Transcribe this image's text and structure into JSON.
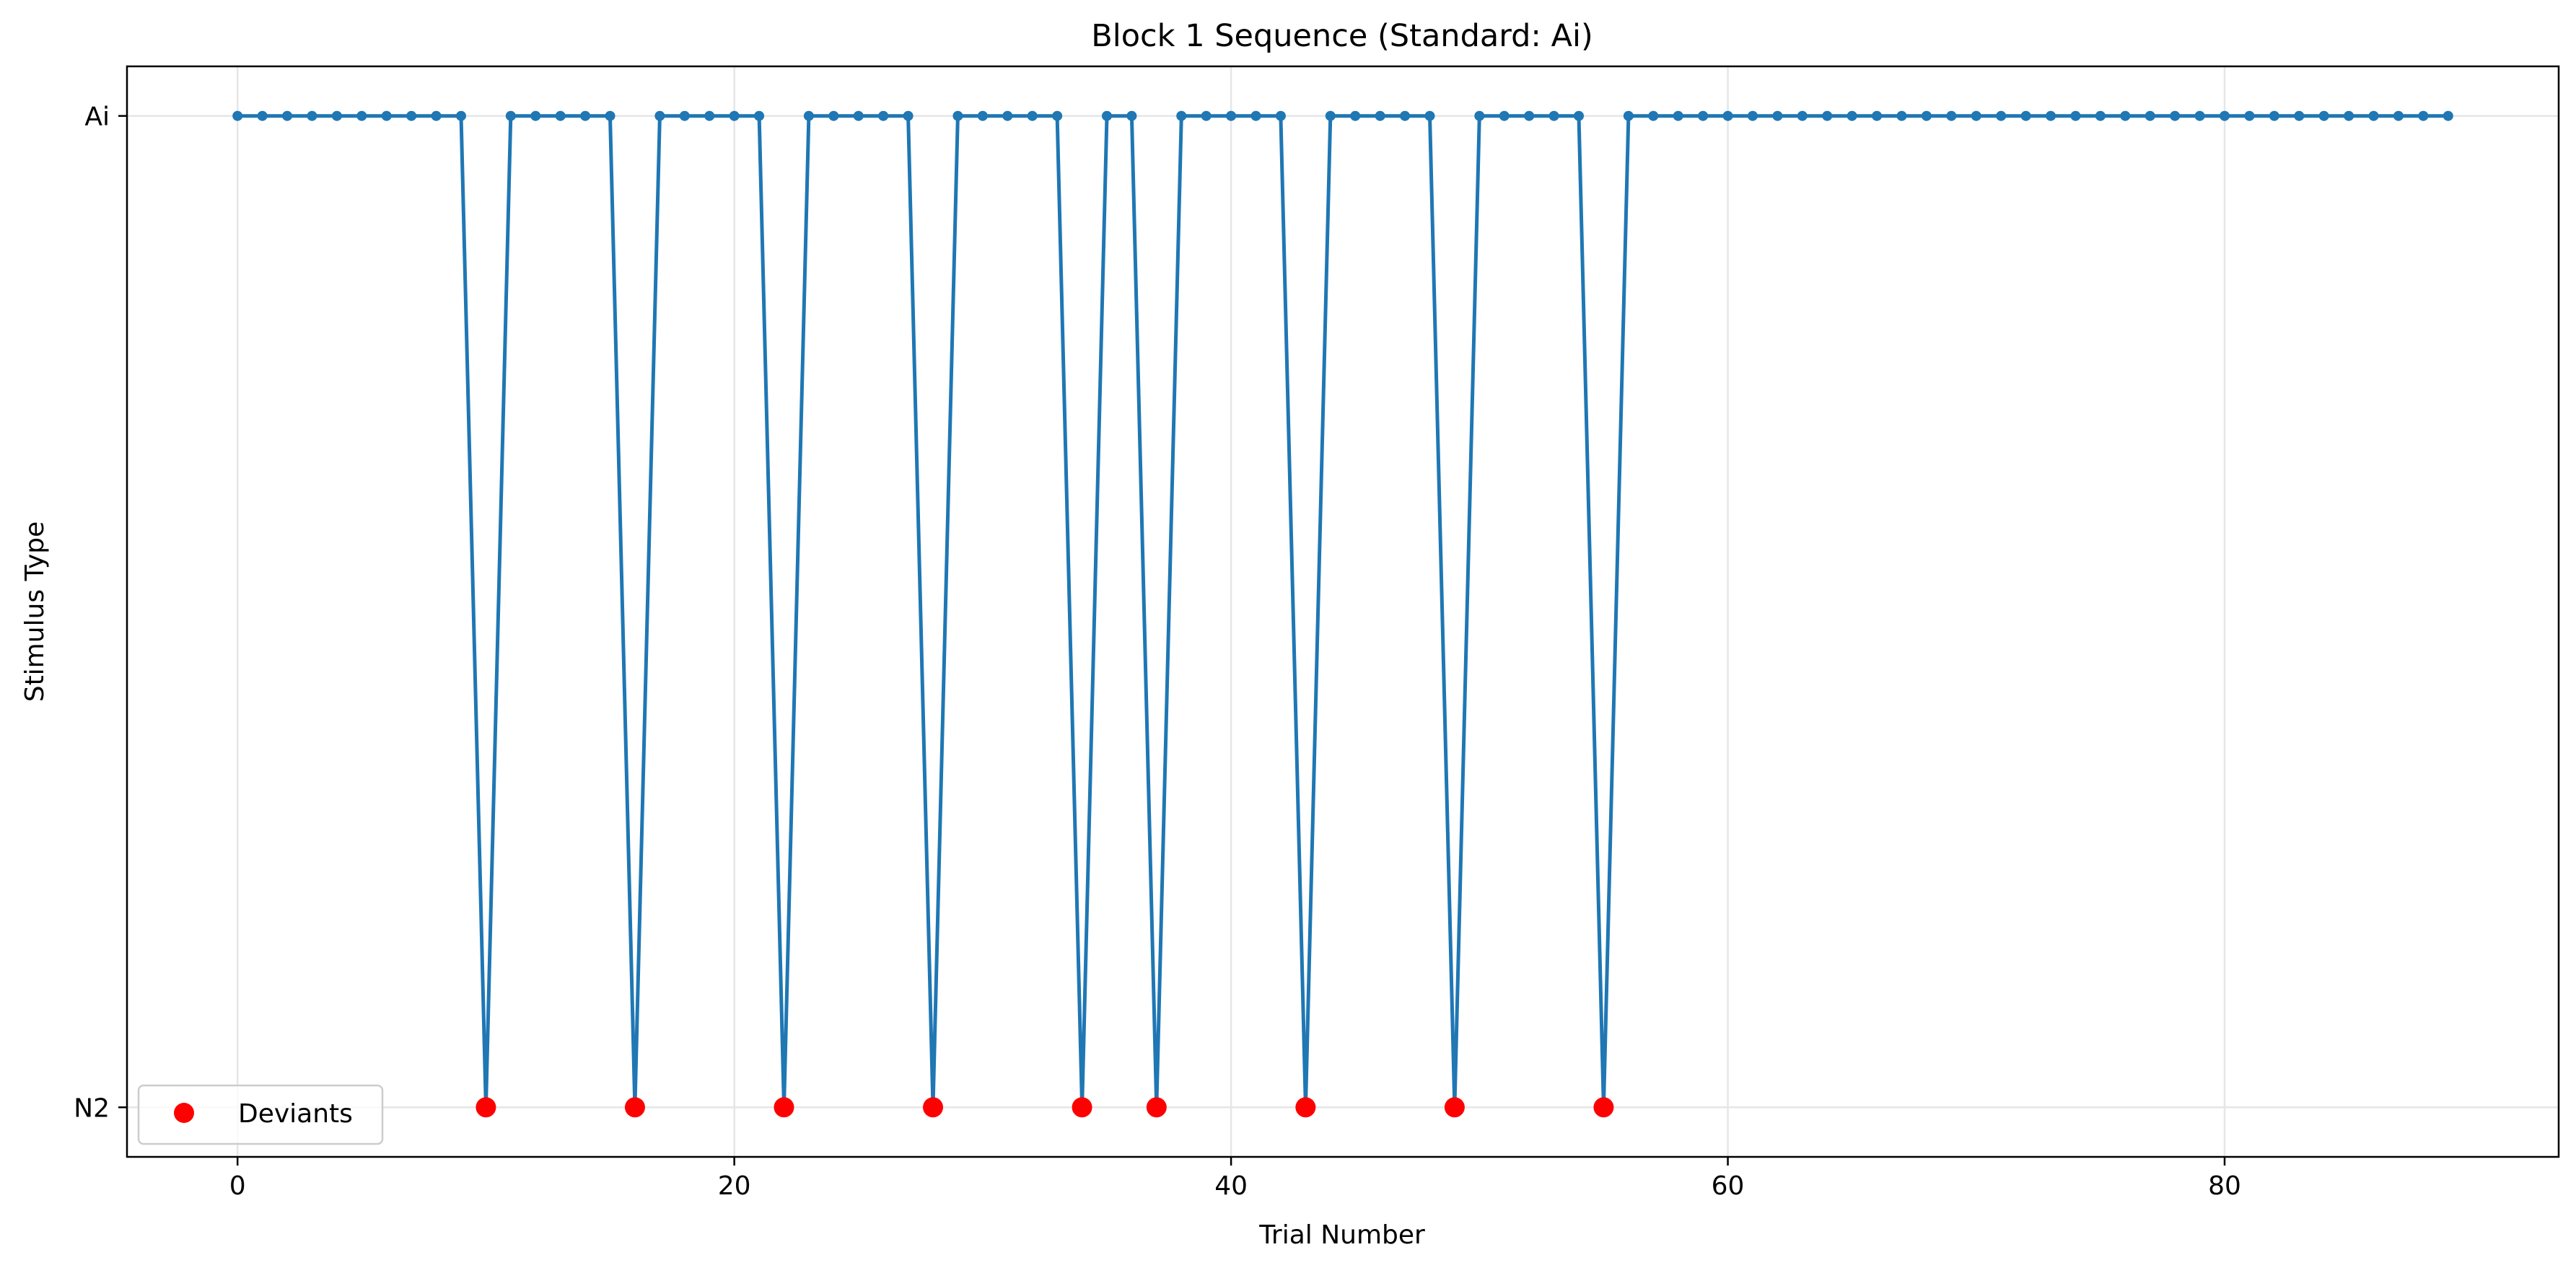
{
  "chart_data": {
    "type": "line",
    "title": "Block 1 Sequence (Standard: Ai)",
    "xlabel": "Trial Number",
    "ylabel": "Stimulus Type",
    "xlim": [
      -4.45,
      93.45
    ],
    "ylim": [
      -0.05,
      1.05
    ],
    "x_ticks": [
      0,
      20,
      40,
      60,
      80
    ],
    "y_ticks": [
      {
        "value": 1,
        "label": "Ai"
      },
      {
        "value": 0,
        "label": "N2"
      }
    ],
    "grid": true,
    "legend_position": "lower-left",
    "colors": {
      "sequence_line": "#1f77b4",
      "deviant_marker": "#ff0000",
      "grid": "#e6e6e6"
    },
    "series": [
      {
        "kind": "line",
        "x": [
          0,
          1,
          2,
          3,
          4,
          5,
          6,
          7,
          8,
          9,
          10,
          11,
          12,
          13,
          14,
          15,
          16,
          17,
          18,
          19,
          20,
          21,
          22,
          23,
          24,
          25,
          26,
          27,
          28,
          29,
          30,
          31,
          32,
          33,
          34,
          35,
          36,
          37,
          38,
          39,
          40,
          41,
          42,
          43,
          44,
          45,
          46,
          47,
          48,
          49,
          50,
          51,
          52,
          53,
          54,
          55,
          56,
          57,
          58,
          59,
          60,
          61,
          62,
          63,
          64,
          65,
          66,
          67,
          68,
          69,
          70,
          71,
          72,
          73,
          74,
          75,
          76,
          77,
          78,
          79,
          80,
          81,
          82,
          83,
          84,
          85,
          86,
          87,
          88,
          89
        ],
        "values": [
          1,
          1,
          1,
          1,
          1,
          1,
          1,
          1,
          1,
          1,
          0,
          1,
          1,
          1,
          1,
          1,
          0,
          1,
          1,
          1,
          1,
          1,
          0,
          1,
          1,
          1,
          1,
          1,
          0,
          1,
          1,
          1,
          1,
          1,
          0,
          1,
          1,
          0,
          1,
          1,
          1,
          1,
          1,
          0,
          1,
          1,
          1,
          1,
          1,
          0,
          1,
          1,
          1,
          1,
          1,
          0,
          1,
          1,
          1,
          1,
          1,
          1,
          1,
          1,
          1,
          1,
          1,
          1,
          1,
          1,
          1,
          1,
          1,
          1,
          1,
          1,
          1,
          1,
          1,
          1,
          1,
          1,
          1,
          1,
          1,
          1,
          1,
          1,
          1,
          1
        ]
      },
      {
        "name": "Deviants",
        "kind": "scatter",
        "x": [
          10,
          16,
          22,
          28,
          34,
          37,
          43,
          49,
          55
        ],
        "values": [
          0,
          0,
          0,
          0,
          0,
          0,
          0,
          0,
          0
        ]
      }
    ]
  }
}
